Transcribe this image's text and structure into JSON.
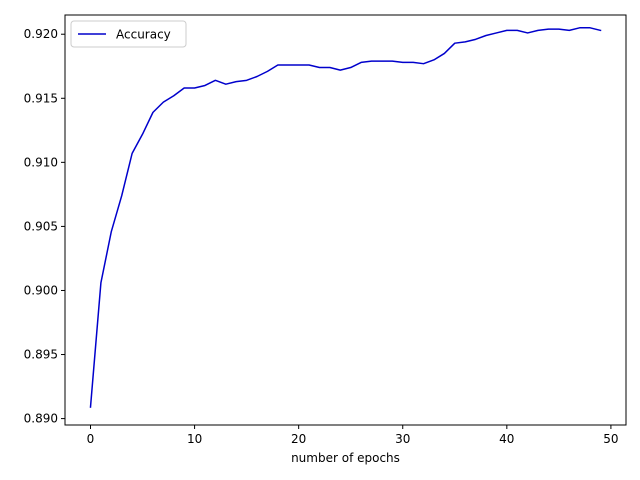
{
  "chart_data": {
    "type": "line",
    "title": "",
    "xlabel": "number of epochs",
    "ylabel": "",
    "xlim": [
      -2.45,
      51.45
    ],
    "ylim": [
      0.8895,
      0.9215
    ],
    "xticks": [
      0,
      10,
      20,
      30,
      40,
      50
    ],
    "yticks": [
      0.89,
      0.895,
      0.9,
      0.905,
      0.91,
      0.915,
      0.92
    ],
    "xtick_labels": [
      "0",
      "10",
      "20",
      "30",
      "40",
      "50"
    ],
    "ytick_labels": [
      "0.890",
      "0.895",
      "0.900",
      "0.905",
      "0.910",
      "0.915",
      "0.920"
    ],
    "grid": false,
    "legend_position": "top-left",
    "series": [
      {
        "name": "Accuracy",
        "color": "#0000cc",
        "x": [
          0,
          1,
          2,
          3,
          4,
          5,
          6,
          7,
          8,
          9,
          10,
          11,
          12,
          13,
          14,
          15,
          16,
          17,
          18,
          19,
          20,
          21,
          22,
          23,
          24,
          25,
          26,
          27,
          28,
          29,
          30,
          31,
          32,
          33,
          34,
          35,
          36,
          37,
          38,
          39,
          40,
          41,
          42,
          43,
          44,
          45,
          46,
          47,
          48,
          49
        ],
        "y": [
          0.8909,
          0.9006,
          0.9046,
          0.9074,
          0.9107,
          0.9122,
          0.9139,
          0.9147,
          0.9152,
          0.9158,
          0.9158,
          0.916,
          0.9164,
          0.9161,
          0.9163,
          0.9164,
          0.9167,
          0.9171,
          0.9176,
          0.9176,
          0.9176,
          0.9176,
          0.9174,
          0.9174,
          0.9172,
          0.9174,
          0.9178,
          0.9179,
          0.9179,
          0.9179,
          0.9178,
          0.9178,
          0.9177,
          0.918,
          0.9185,
          0.9193,
          0.9194,
          0.9196,
          0.9199,
          0.9201,
          0.9203,
          0.9203,
          0.9201,
          0.9203,
          0.9204,
          0.9204,
          0.9203,
          0.9205,
          0.9205,
          0.9203
        ]
      }
    ]
  }
}
